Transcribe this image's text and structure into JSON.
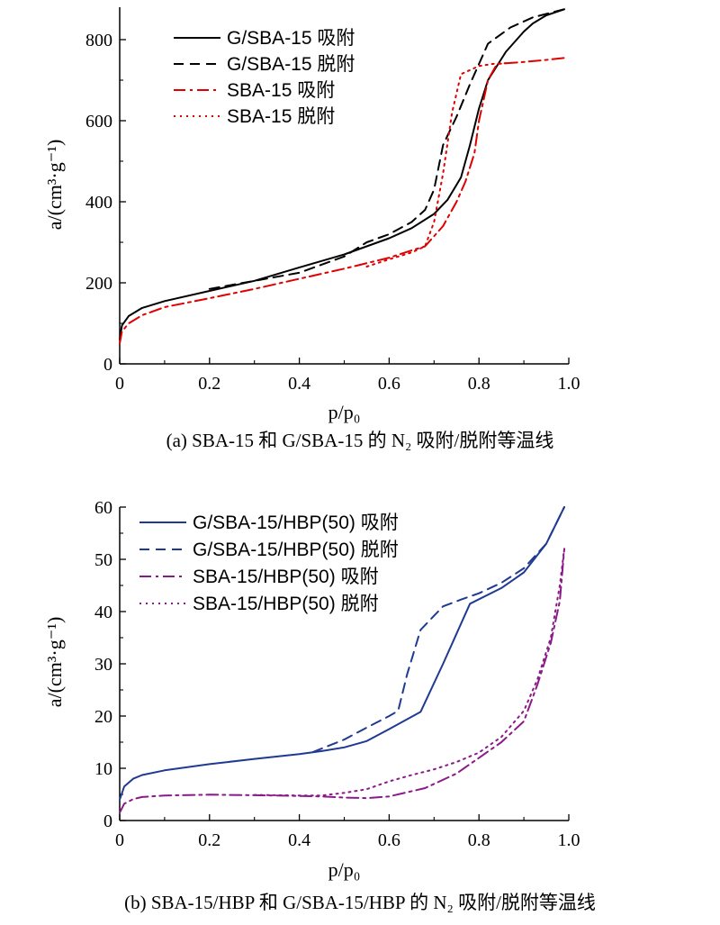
{
  "figure": {
    "panels": [
      {
        "caption": "(a) SBA-15 和 G/SBA-15 的 N₂ 吸附/脱附等温线",
        "xlabel": "p/p₀",
        "ylabel": "a/(cm³·g⁻¹)",
        "xticks": [
          "0",
          "0.2",
          "0.4",
          "0.6",
          "0.8",
          "1.0"
        ],
        "yticks": [
          "0",
          "200",
          "400",
          "600",
          "800"
        ]
      },
      {
        "caption": "(b) SBA-15/HBP 和 G/SBA-15/HBP 的 N₂ 吸附/脱附等温线",
        "xlabel": "p/p₀",
        "ylabel": "a/(cm³·g⁻¹)",
        "xticks": [
          "0",
          "0.2",
          "0.4",
          "0.6",
          "0.8",
          "1.0"
        ],
        "yticks": [
          "0",
          "10",
          "20",
          "30",
          "40",
          "50",
          "60"
        ]
      }
    ]
  },
  "chart_data": [
    {
      "type": "line",
      "title": "(a) SBA-15 和 G/SBA-15 的 N₂ 吸附/脱附等温线",
      "xlabel": "p/p₀",
      "ylabel": "a/(cm³·g⁻¹)",
      "xlim": [
        0,
        1.0
      ],
      "ylim": [
        0,
        880
      ],
      "grid": false,
      "legend_position": "top-left",
      "series": [
        {
          "name": "G/SBA-15 吸附",
          "color": "#000000",
          "dash": "solid",
          "x": [
            0,
            0.005,
            0.02,
            0.05,
            0.1,
            0.2,
            0.3,
            0.4,
            0.5,
            0.6,
            0.65,
            0.7,
            0.73,
            0.76,
            0.78,
            0.8,
            0.82,
            0.86,
            0.9,
            0.92,
            0.95,
            0.99
          ],
          "y": [
            60,
            95,
            118,
            138,
            155,
            180,
            205,
            238,
            270,
            310,
            335,
            370,
            405,
            460,
            540,
            630,
            700,
            770,
            820,
            840,
            860,
            875
          ]
        },
        {
          "name": "G/SBA-15 脱附",
          "color": "#000000",
          "dash": "dashed",
          "x": [
            0.2,
            0.3,
            0.4,
            0.5,
            0.55,
            0.6,
            0.65,
            0.68,
            0.7,
            0.72,
            0.75,
            0.78,
            0.82,
            0.87,
            0.92,
            0.99
          ],
          "y": [
            185,
            205,
            225,
            265,
            300,
            320,
            350,
            380,
            430,
            540,
            610,
            690,
            790,
            830,
            855,
            875
          ]
        },
        {
          "name": "SBA-15 吸附",
          "color": "#e00000",
          "dash": "dashdot",
          "x": [
            0,
            0.005,
            0.02,
            0.05,
            0.1,
            0.2,
            0.3,
            0.4,
            0.5,
            0.6,
            0.65,
            0.68,
            0.72,
            0.75,
            0.77,
            0.79,
            0.8,
            0.82,
            0.84,
            0.9,
            0.95,
            0.99
          ],
          "y": [
            50,
            80,
            100,
            120,
            140,
            162,
            185,
            210,
            235,
            262,
            280,
            290,
            340,
            400,
            450,
            520,
            600,
            700,
            740,
            745,
            750,
            755
          ]
        },
        {
          "name": "SBA-15 脱附",
          "color": "#e00000",
          "dash": "dotted",
          "x": [
            0.55,
            0.6,
            0.65,
            0.68,
            0.7,
            0.72,
            0.74,
            0.76,
            0.78,
            0.8,
            0.83,
            0.86
          ],
          "y": [
            240,
            258,
            275,
            290,
            350,
            470,
            620,
            715,
            725,
            735,
            740,
            742
          ]
        }
      ]
    },
    {
      "type": "line",
      "title": "(b) SBA-15/HBP 和 G/SBA-15/HBP 的 N₂ 吸附/脱附等温线",
      "xlabel": "p/p₀",
      "ylabel": "a/(cm³·g⁻¹)",
      "xlim": [
        0,
        1.0
      ],
      "ylim": [
        0,
        60
      ],
      "grid": false,
      "legend_position": "top-left",
      "series": [
        {
          "name": "G/SBA-15/HBP(50) 吸附",
          "color": "#1f3a93",
          "dash": "solid",
          "x": [
            0,
            0.01,
            0.03,
            0.05,
            0.1,
            0.2,
            0.3,
            0.4,
            0.45,
            0.5,
            0.55,
            0.6,
            0.67,
            0.72,
            0.78,
            0.85,
            0.9,
            0.95,
            0.99
          ],
          "y": [
            4,
            6.5,
            8,
            8.7,
            9.6,
            10.8,
            11.8,
            12.7,
            13.3,
            14,
            15.2,
            17.5,
            20.8,
            30,
            41.5,
            44.5,
            47.5,
            53,
            60
          ]
        },
        {
          "name": "G/SBA-15/HBP(50) 脱附",
          "color": "#1f3a93",
          "dash": "dashed",
          "x": [
            0.43,
            0.5,
            0.55,
            0.6,
            0.62,
            0.64,
            0.67,
            0.72,
            0.76,
            0.8,
            0.85,
            0.9,
            0.95,
            0.99
          ],
          "y": [
            13.1,
            15.5,
            17.8,
            20,
            21,
            28,
            36.5,
            41,
            42.3,
            43.5,
            45.5,
            48.3,
            53,
            60
          ]
        },
        {
          "name": "SBA-15/HBP(50) 吸附",
          "color": "#8b1a89",
          "dash": "dashdot",
          "x": [
            0,
            0.01,
            0.03,
            0.05,
            0.1,
            0.2,
            0.3,
            0.4,
            0.45,
            0.5,
            0.55,
            0.6,
            0.68,
            0.75,
            0.8,
            0.85,
            0.9,
            0.93,
            0.96,
            0.98,
            0.99
          ],
          "y": [
            1.5,
            3.2,
            4.1,
            4.5,
            4.8,
            4.95,
            4.85,
            4.7,
            4.6,
            4.4,
            4.3,
            4.6,
            6.2,
            9,
            12,
            15,
            19,
            26,
            34,
            42,
            52
          ]
        },
        {
          "name": "SBA-15/HBP(50) 脱附",
          "color": "#8b1a89",
          "dash": "dotted",
          "x": [
            0.3,
            0.4,
            0.45,
            0.5,
            0.55,
            0.6,
            0.65,
            0.7,
            0.75,
            0.8,
            0.85,
            0.9,
            0.93,
            0.96,
            0.98,
            0.99
          ],
          "y": [
            4.9,
            4.8,
            4.8,
            5.3,
            6,
            7.5,
            8.7,
            9.8,
            11.2,
            13,
            16,
            21,
            27,
            35,
            45,
            52
          ]
        }
      ]
    }
  ]
}
